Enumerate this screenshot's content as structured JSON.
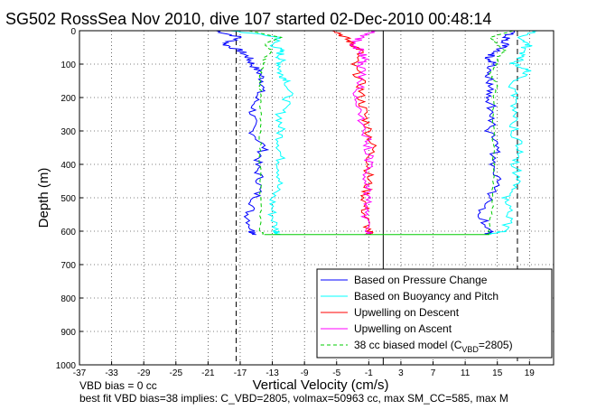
{
  "chart_data": {
    "type": "line",
    "title": "SG502 RossSea Nov 2010, dive 107 started 02-Dec-2010 00:48:14",
    "xlabel": "Vertical Velocity (cm/s)",
    "ylabel": "Depth (m)",
    "xlim": [
      -37,
      22
    ],
    "ylim": [
      1000,
      0
    ],
    "y_reversed": true,
    "grid": true,
    "xticks": [
      -37,
      -33,
      -29,
      -25,
      -21,
      -17,
      -13,
      -9,
      -5,
      -1,
      3,
      7,
      11,
      15,
      19
    ],
    "yticks": [
      0,
      100,
      200,
      300,
      400,
      500,
      600,
      700,
      800,
      900,
      1000
    ],
    "vertical_lines": [
      {
        "x": -17.5,
        "style": "dashed"
      },
      {
        "x": 17.5,
        "style": "dashed"
      },
      {
        "x": 0.8,
        "style": "solid"
      }
    ],
    "legend_position": "bottom-right",
    "legend": [
      {
        "label": "Based on Pressure Change",
        "color": "#0000ff",
        "style": "solid"
      },
      {
        "label": "Based on Buoyancy and Pitch",
        "color": "#00ffff",
        "style": "solid"
      },
      {
        "label": "Upwelling on Descent",
        "color": "#ff0000",
        "style": "solid"
      },
      {
        "label": "Upwelling on Ascent",
        "color": "#ff00ff",
        "style": "solid"
      },
      {
        "label_main": "38 cc biased model (C",
        "label_sub": "VBD",
        "label_end": "=2805)",
        "color": "#00cc00",
        "style": "dashed"
      }
    ],
    "series": [
      {
        "color": "#0000ff",
        "depth": [
          0,
          20,
          40,
          60,
          80,
          100,
          130,
          160,
          200,
          250,
          300,
          350,
          400,
          450,
          500,
          550,
          600,
          610
        ],
        "x": [
          -20,
          -17,
          -19,
          -17,
          -16,
          -15.5,
          -14.5,
          -14,
          -15,
          -15.5,
          -15.5,
          -14,
          -15,
          -14.5,
          -15,
          -16,
          -15.5,
          -15
        ]
      },
      {
        "color": "#0000ff",
        "depth": [
          610,
          600,
          550,
          500,
          450,
          400,
          350,
          300,
          250,
          200,
          160,
          130,
          100,
          80,
          60,
          40,
          20,
          0
        ],
        "x": [
          14,
          14,
          13,
          14,
          15,
          14,
          15,
          14,
          14.5,
          14,
          14,
          14,
          14.5,
          14,
          15,
          16,
          16,
          17
        ]
      },
      {
        "color": "#00ffff",
        "depth": [
          0,
          20,
          40,
          60,
          80,
          100,
          130,
          150,
          200,
          250,
          300,
          350,
          400,
          450,
          500,
          550,
          600,
          610
        ],
        "x": [
          -18,
          -12,
          -13,
          -12,
          -12,
          -12,
          -12,
          -11,
          -11,
          -12,
          -12,
          -12,
          -12,
          -12,
          -13,
          -13,
          -12.5,
          -12
        ]
      },
      {
        "color": "#00ffff",
        "depth": [
          610,
          600,
          550,
          500,
          450,
          400,
          350,
          300,
          250,
          200,
          150,
          120,
          100,
          80,
          60,
          40,
          20,
          0
        ],
        "x": [
          14,
          16,
          16.5,
          16,
          18,
          17,
          18,
          17,
          17.5,
          17,
          17,
          19,
          17,
          18,
          18,
          19,
          18,
          20
        ]
      },
      {
        "color": "#ff0000",
        "depth": [
          0,
          20,
          40,
          60,
          100,
          150,
          200,
          250,
          300,
          350,
          400,
          450,
          500,
          550,
          600,
          610
        ],
        "x": [
          -5,
          -4,
          -3,
          -2,
          -3,
          -2,
          -2,
          -1.5,
          -1,
          -0.5,
          -1,
          -1,
          -1.5,
          -1.5,
          -1,
          -1
        ]
      },
      {
        "color": "#ff00ff",
        "depth": [
          610,
          600,
          550,
          500,
          450,
          400,
          350,
          300,
          250,
          200,
          150,
          100,
          80,
          60,
          40,
          20,
          0
        ],
        "x": [
          -1,
          -1,
          -1.5,
          -1,
          -1.5,
          -1,
          -1,
          -1.5,
          -2,
          -2.5,
          -2,
          -2,
          -1.5,
          -2,
          -3,
          -2,
          0
        ]
      },
      {
        "color": "#00cc00",
        "dashed": true,
        "depth": [
          0,
          20,
          40,
          60,
          80,
          100,
          130,
          160,
          200,
          300,
          400,
          500,
          600,
          610
        ],
        "x": [
          -16,
          -12,
          -14,
          -13,
          -14,
          -14,
          -14.5,
          -14.5,
          -14.5,
          -14.5,
          -14.5,
          -14.5,
          -14.5,
          -14
        ]
      },
      {
        "color": "#00cc00",
        "dashed": true,
        "depth": [
          610,
          600,
          500,
          400,
          300,
          200,
          160,
          130,
          100,
          80,
          60,
          40,
          20,
          0
        ],
        "x": [
          14,
          14,
          14.5,
          14.5,
          14.5,
          14.5,
          15,
          14,
          15,
          15,
          16,
          15,
          14,
          17
        ]
      }
    ],
    "bottom_segment": {
      "depth": 610,
      "x_from": -14,
      "x_to": 14
    },
    "footnotes": [
      "VBD bias = 0 cc",
      "best fit VBD bias=38 implies: C_VBD=2805, volmax=50963 cc, max SM_CC=585, max M"
    ]
  }
}
